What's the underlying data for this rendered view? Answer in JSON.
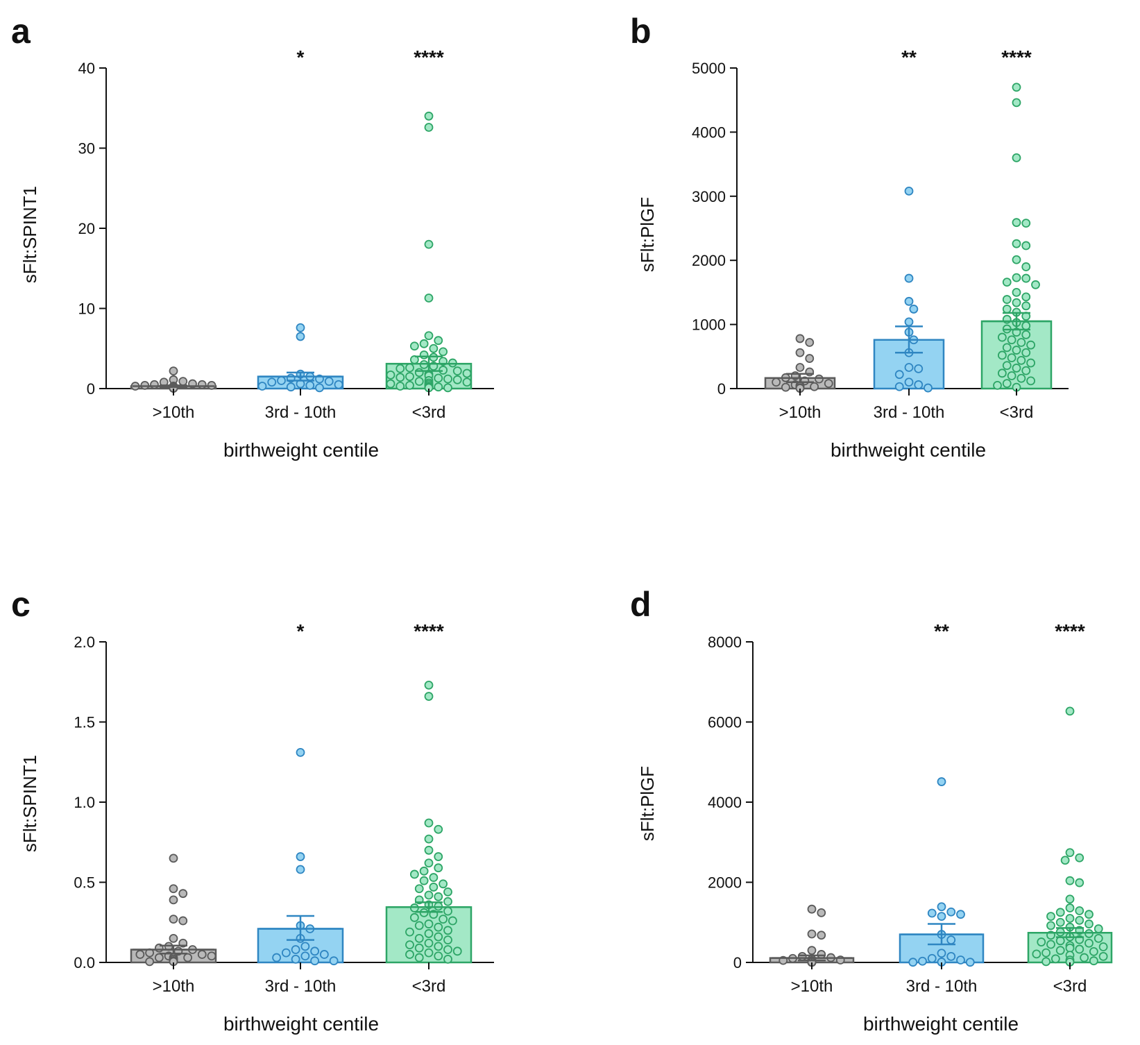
{
  "figure": {
    "xlabel": "birthweight centile",
    "categories": [
      ">10th",
      "3rd - 10th",
      "<3rd"
    ],
    "colors": {
      "gray_fill": "#b9b9b9",
      "gray_stroke": "#5a5a5a",
      "blue_fill": "#94d3f2",
      "blue_stroke": "#2f86c2",
      "green_fill": "#a3e8c6",
      "green_stroke": "#2da566",
      "axis": "#111111"
    }
  },
  "chart_data": [
    {
      "panel": "a",
      "type": "bar",
      "ylabel": "sFlt:SPINT1",
      "ylim": [
        0,
        40
      ],
      "yticks": [
        0,
        10,
        20,
        30,
        40
      ],
      "ytick_labels": [
        "0",
        "10",
        "20",
        "30",
        "40"
      ],
      "categories": [
        ">10th",
        "3rd - 10th",
        "<3rd"
      ],
      "significance": [
        "",
        "*",
        "****"
      ],
      "series": [
        {
          "name": ">10th",
          "mean": 0.3,
          "sem_low": 0.2,
          "sem_high": 0.4,
          "points": [
            2.2,
            1.1,
            0.9,
            0.8,
            0.6,
            0.5,
            0.5,
            0.4,
            0.4,
            0.3,
            0.3,
            0.3,
            0.2,
            0.2,
            0.2,
            0.2,
            0.1,
            0.1,
            0.1,
            0.1,
            0.1,
            0.05,
            0.05,
            0.05,
            0.05
          ]
        },
        {
          "name": "3rd - 10th",
          "mean": 1.5,
          "sem_low": 1.0,
          "sem_high": 2.0,
          "points": [
            7.6,
            6.5,
            1.8,
            1.5,
            1.3,
            1.2,
            1.0,
            0.9,
            0.8,
            0.6,
            0.5,
            0.4,
            0.3,
            0.2,
            0.1
          ]
        },
        {
          "name": "<3rd",
          "mean": 3.1,
          "sem_low": 2.2,
          "sem_high": 4.0,
          "points": [
            34.0,
            32.6,
            18.0,
            11.3,
            6.6,
            6.0,
            5.6,
            5.3,
            5.0,
            4.6,
            4.2,
            3.9,
            3.6,
            3.4,
            3.2,
            3.0,
            2.8,
            2.6,
            2.5,
            2.3,
            2.2,
            2.0,
            1.9,
            1.8,
            1.7,
            1.6,
            1.5,
            1.4,
            1.3,
            1.2,
            1.1,
            1.0,
            0.9,
            0.8,
            0.7,
            0.6,
            0.5,
            0.5,
            0.4,
            0.3,
            0.3,
            0.2,
            0.2,
            0.1,
            0.1
          ]
        }
      ]
    },
    {
      "panel": "b",
      "type": "bar",
      "ylabel": "sFlt:PlGF",
      "ylim": [
        0,
        5000
      ],
      "yticks": [
        0,
        1000,
        2000,
        3000,
        4000,
        5000
      ],
      "ytick_labels": [
        "0",
        "1000",
        "2000",
        "3000",
        "4000",
        "5000"
      ],
      "categories": [
        ">10th",
        "3rd - 10th",
        "<3rd"
      ],
      "significance": [
        "",
        "**",
        "****"
      ],
      "series": [
        {
          "name": ">10th",
          "mean": 165,
          "sem_low": 100,
          "sem_high": 230,
          "points": [
            780,
            720,
            560,
            470,
            330,
            260,
            200,
            170,
            150,
            120,
            100,
            80,
            60,
            50,
            40,
            30,
            20,
            15,
            10,
            10,
            5,
            5
          ]
        },
        {
          "name": "3rd - 10th",
          "mean": 760,
          "sem_low": 560,
          "sem_high": 970,
          "points": [
            3080,
            1720,
            1360,
            1240,
            1040,
            880,
            760,
            560,
            330,
            310,
            220,
            100,
            60,
            30,
            10
          ]
        },
        {
          "name": "<3rd",
          "mean": 1050,
          "sem_low": 920,
          "sem_high": 1180,
          "points": [
            4700,
            4460,
            3600,
            2590,
            2580,
            2260,
            2230,
            2010,
            1900,
            1730,
            1720,
            1660,
            1620,
            1500,
            1430,
            1390,
            1340,
            1290,
            1240,
            1190,
            1130,
            1080,
            1030,
            980,
            930,
            880,
            840,
            800,
            760,
            720,
            680,
            640,
            600,
            560,
            520,
            480,
            440,
            400,
            360,
            320,
            280,
            240,
            200,
            160,
            120,
            80,
            50,
            20
          ]
        }
      ]
    },
    {
      "panel": "c",
      "type": "bar",
      "ylabel": "sFlt:SPINT1",
      "ylim": [
        0,
        2.0
      ],
      "yticks": [
        0,
        0.5,
        1.0,
        1.5,
        2.0
      ],
      "ytick_labels": [
        "0.0",
        "0.5",
        "1.0",
        "1.5",
        "2.0"
      ],
      "categories": [
        ">10th",
        "3rd - 10th",
        "<3rd"
      ],
      "significance": [
        "",
        "*",
        "****"
      ],
      "series": [
        {
          "name": ">10th",
          "mean": 0.08,
          "sem_low": 0.055,
          "sem_high": 0.105,
          "points": [
            0.65,
            0.46,
            0.43,
            0.39,
            0.27,
            0.26,
            0.15,
            0.12,
            0.1,
            0.09,
            0.08,
            0.07,
            0.06,
            0.05,
            0.05,
            0.04,
            0.04,
            0.03,
            0.03,
            0.03,
            0.02,
            0.02,
            0.02,
            0.01,
            0.01,
            0.01,
            0.01,
            0.01,
            0.005,
            0.005
          ]
        },
        {
          "name": "3rd - 10th",
          "mean": 0.21,
          "sem_low": 0.14,
          "sem_high": 0.29,
          "points": [
            1.31,
            0.66,
            0.58,
            0.23,
            0.21,
            0.15,
            0.1,
            0.08,
            0.07,
            0.06,
            0.05,
            0.04,
            0.03,
            0.02,
            0.01,
            0.01
          ]
        },
        {
          "name": "<3rd",
          "mean": 0.345,
          "sem_low": 0.315,
          "sem_high": 0.375,
          "points": [
            1.73,
            1.66,
            0.87,
            0.83,
            0.77,
            0.7,
            0.66,
            0.62,
            0.59,
            0.57,
            0.55,
            0.53,
            0.51,
            0.49,
            0.47,
            0.46,
            0.44,
            0.42,
            0.41,
            0.39,
            0.38,
            0.36,
            0.35,
            0.34,
            0.32,
            0.31,
            0.3,
            0.28,
            0.27,
            0.26,
            0.24,
            0.23,
            0.22,
            0.2,
            0.19,
            0.18,
            0.16,
            0.15,
            0.14,
            0.12,
            0.11,
            0.1,
            0.09,
            0.08,
            0.07,
            0.06,
            0.05,
            0.04,
            0.03,
            0.02
          ]
        }
      ]
    },
    {
      "panel": "d",
      "type": "bar",
      "ylabel": "sFlt:PlGF",
      "ylim": [
        0,
        8000
      ],
      "yticks": [
        0,
        2000,
        4000,
        6000,
        8000
      ],
      "ytick_labels": [
        "0",
        "2000",
        "4000",
        "6000",
        "8000"
      ],
      "categories": [
        ">10th",
        "3rd - 10th",
        "<3rd"
      ],
      "significance": [
        "",
        "**",
        "****"
      ],
      "series": [
        {
          "name": ">10th",
          "mean": 110,
          "sem_low": 50,
          "sem_high": 175,
          "points": [
            1330,
            1240,
            710,
            680,
            300,
            200,
            150,
            120,
            100,
            80,
            60,
            50,
            40,
            30,
            20,
            20,
            10,
            10,
            10,
            5,
            5,
            5,
            5,
            5,
            5,
            5,
            5,
            5
          ]
        },
        {
          "name": "3rd - 10th",
          "mean": 700,
          "sem_low": 450,
          "sem_high": 960,
          "points": [
            4510,
            1390,
            1260,
            1230,
            1200,
            1150,
            700,
            560,
            230,
            150,
            100,
            60,
            30,
            10,
            5,
            5
          ]
        },
        {
          "name": "<3rd",
          "mean": 740,
          "sem_low": 630,
          "sem_high": 860,
          "points": [
            6270,
            2740,
            2610,
            2550,
            2040,
            1990,
            1580,
            1360,
            1290,
            1250,
            1200,
            1150,
            1100,
            1050,
            1000,
            960,
            920,
            880,
            840,
            800,
            760,
            720,
            680,
            640,
            600,
            570,
            540,
            510,
            480,
            450,
            420,
            390,
            360,
            330,
            300,
            270,
            240,
            210,
            180,
            150,
            120,
            90,
            60,
            40,
            20,
            10
          ]
        }
      ]
    }
  ]
}
